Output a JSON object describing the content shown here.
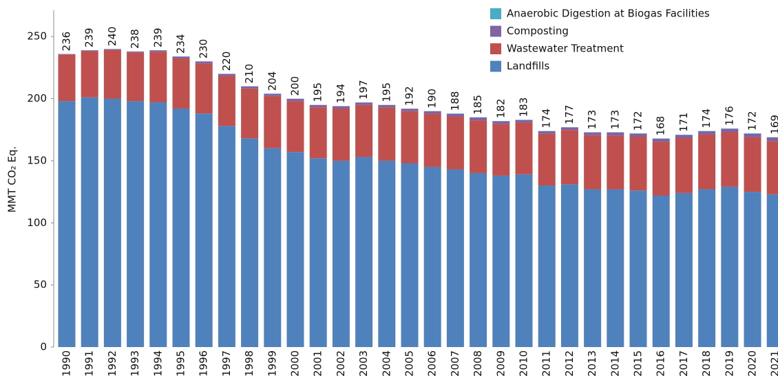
{
  "chart_data": {
    "type": "stacked_bar",
    "y_axis_label": "MMT CO₂ Eq.",
    "categories": [
      "1990",
      "1991",
      "1992",
      "1993",
      "1994",
      "1995",
      "1996",
      "1997",
      "1998",
      "1999",
      "2000",
      "2001",
      "2002",
      "2003",
      "2004",
      "2005",
      "2006",
      "2007",
      "2008",
      "2009",
      "2010",
      "2011",
      "2012",
      "2013",
      "2014",
      "2015",
      "2016",
      "2017",
      "2018",
      "2019",
      "2020",
      "2021"
    ],
    "series": [
      {
        "name": "Landfills",
        "color": "#4f81bd",
        "values": [
          198,
          201,
          200,
          198,
          197,
          192,
          188,
          178,
          168,
          160,
          157,
          152,
          150,
          153,
          150,
          148,
          145,
          143,
          140,
          138,
          139,
          130,
          131,
          127,
          127,
          126,
          122,
          124,
          127,
          129,
          125,
          123
        ]
      },
      {
        "name": "Wastewater Treatment",
        "color": "#c0504d",
        "values": [
          37.5,
          37.2,
          39.2,
          39.0,
          40.7,
          40.4,
          40.3,
          40.3,
          40.2,
          42.1,
          41.0,
          41.0,
          42.0,
          41.9,
          42.9,
          41.9,
          42.8,
          42.6,
          42.5,
          41.6,
          41.7,
          41.7,
          43.7,
          43.5,
          43.3,
          43.3,
          43.2,
          44.2,
          44.2,
          43.9,
          43.8,
          42.8
        ]
      },
      {
        "name": "Composting",
        "color": "#8064a2",
        "values": [
          0.4,
          0.7,
          0.7,
          0.9,
          1.2,
          1.5,
          1.6,
          1.6,
          1.7,
          1.8,
          1.9,
          1.9,
          1.9,
          2.0,
          2.0,
          2.0,
          2.0,
          2.2,
          2.3,
          2.2,
          2.1,
          2.1,
          2.1,
          2.3,
          2.5,
          2.5,
          2.6,
          2.6,
          2.6,
          2.9,
          3.0,
          3.0
        ]
      },
      {
        "name": "Anaerobic Digestion at Biogas Facilities",
        "color": "#4bacc6",
        "values": [
          0.1,
          0.1,
          0.1,
          0.1,
          0.1,
          0.1,
          0.1,
          0.1,
          0.1,
          0.1,
          0.1,
          0.1,
          0.1,
          0.1,
          0.1,
          0.1,
          0.2,
          0.2,
          0.2,
          0.2,
          0.2,
          0.2,
          0.2,
          0.2,
          0.2,
          0.2,
          0.2,
          0.2,
          0.2,
          0.2,
          0.2,
          0.2
        ]
      }
    ],
    "total_labels": [
      236,
      239,
      240,
      238,
      239,
      234,
      230,
      220,
      210,
      204,
      200,
      195,
      194,
      197,
      195,
      192,
      190,
      188,
      185,
      182,
      183,
      174,
      177,
      173,
      173,
      172,
      168,
      171,
      174,
      176,
      172,
      169
    ],
    "ylim": [
      0,
      270
    ],
    "yticks": [
      0,
      50,
      100,
      150,
      200,
      250
    ],
    "grid": false,
    "legend": "top-right"
  }
}
